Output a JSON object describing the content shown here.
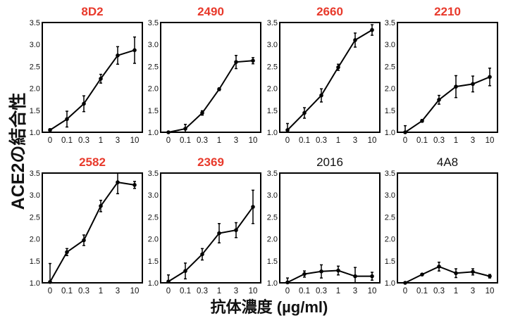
{
  "chart_data": {
    "type": "line",
    "ylabel": "ACE2の結合性",
    "xlabel": "抗体濃度 (µg/ml)",
    "categories": [
      "0",
      "0.1",
      "0.3",
      "1",
      "3",
      "10"
    ],
    "yticks": [
      "1.0",
      "1.5",
      "2.0",
      "2.5",
      "3.0",
      "3.5"
    ],
    "ylim": [
      1.0,
      3.5
    ],
    "grid": false,
    "highlight_color": "#e8392b",
    "default_title_color": "#111111",
    "panels": [
      {
        "title": "8D2",
        "highlighted": true,
        "values": [
          1.05,
          1.3,
          1.65,
          2.22,
          2.75,
          2.87
        ],
        "errors": [
          0.03,
          0.18,
          0.18,
          0.1,
          0.2,
          0.3
        ]
      },
      {
        "title": "2490",
        "highlighted": true,
        "values": [
          1.0,
          1.08,
          1.44,
          1.98,
          2.6,
          2.63
        ],
        "errors": [
          0.02,
          0.1,
          0.05,
          0.03,
          0.15,
          0.07
        ]
      },
      {
        "title": "2660",
        "highlighted": true,
        "values": [
          1.05,
          1.44,
          1.84,
          2.48,
          3.1,
          3.33
        ],
        "errors": [
          0.15,
          0.12,
          0.15,
          0.07,
          0.16,
          0.12
        ]
      },
      {
        "title": "2210",
        "highlighted": true,
        "values": [
          1.0,
          1.26,
          1.74,
          2.04,
          2.1,
          2.26
        ],
        "errors": [
          0.15,
          0.03,
          0.1,
          0.25,
          0.18,
          0.2
        ]
      },
      {
        "title": "2582",
        "highlighted": true,
        "values": [
          1.02,
          1.7,
          1.97,
          2.75,
          3.29,
          3.23
        ],
        "errors": [
          0.42,
          0.08,
          0.12,
          0.13,
          0.26,
          0.08
        ]
      },
      {
        "title": "2369",
        "highlighted": true,
        "values": [
          1.03,
          1.27,
          1.65,
          2.13,
          2.2,
          2.73
        ],
        "errors": [
          0.15,
          0.18,
          0.13,
          0.22,
          0.17,
          0.38
        ]
      },
      {
        "title": "2016",
        "highlighted": false,
        "values": [
          1.01,
          1.2,
          1.26,
          1.28,
          1.15,
          1.15
        ],
        "errors": [
          0.1,
          0.07,
          0.15,
          0.1,
          0.2,
          0.09
        ]
      },
      {
        "title": "4A8",
        "highlighted": false,
        "values": [
          1.0,
          1.19,
          1.37,
          1.22,
          1.25,
          1.15
        ],
        "errors": [
          0.02,
          0.02,
          0.1,
          0.1,
          0.07,
          0.04
        ]
      }
    ]
  }
}
